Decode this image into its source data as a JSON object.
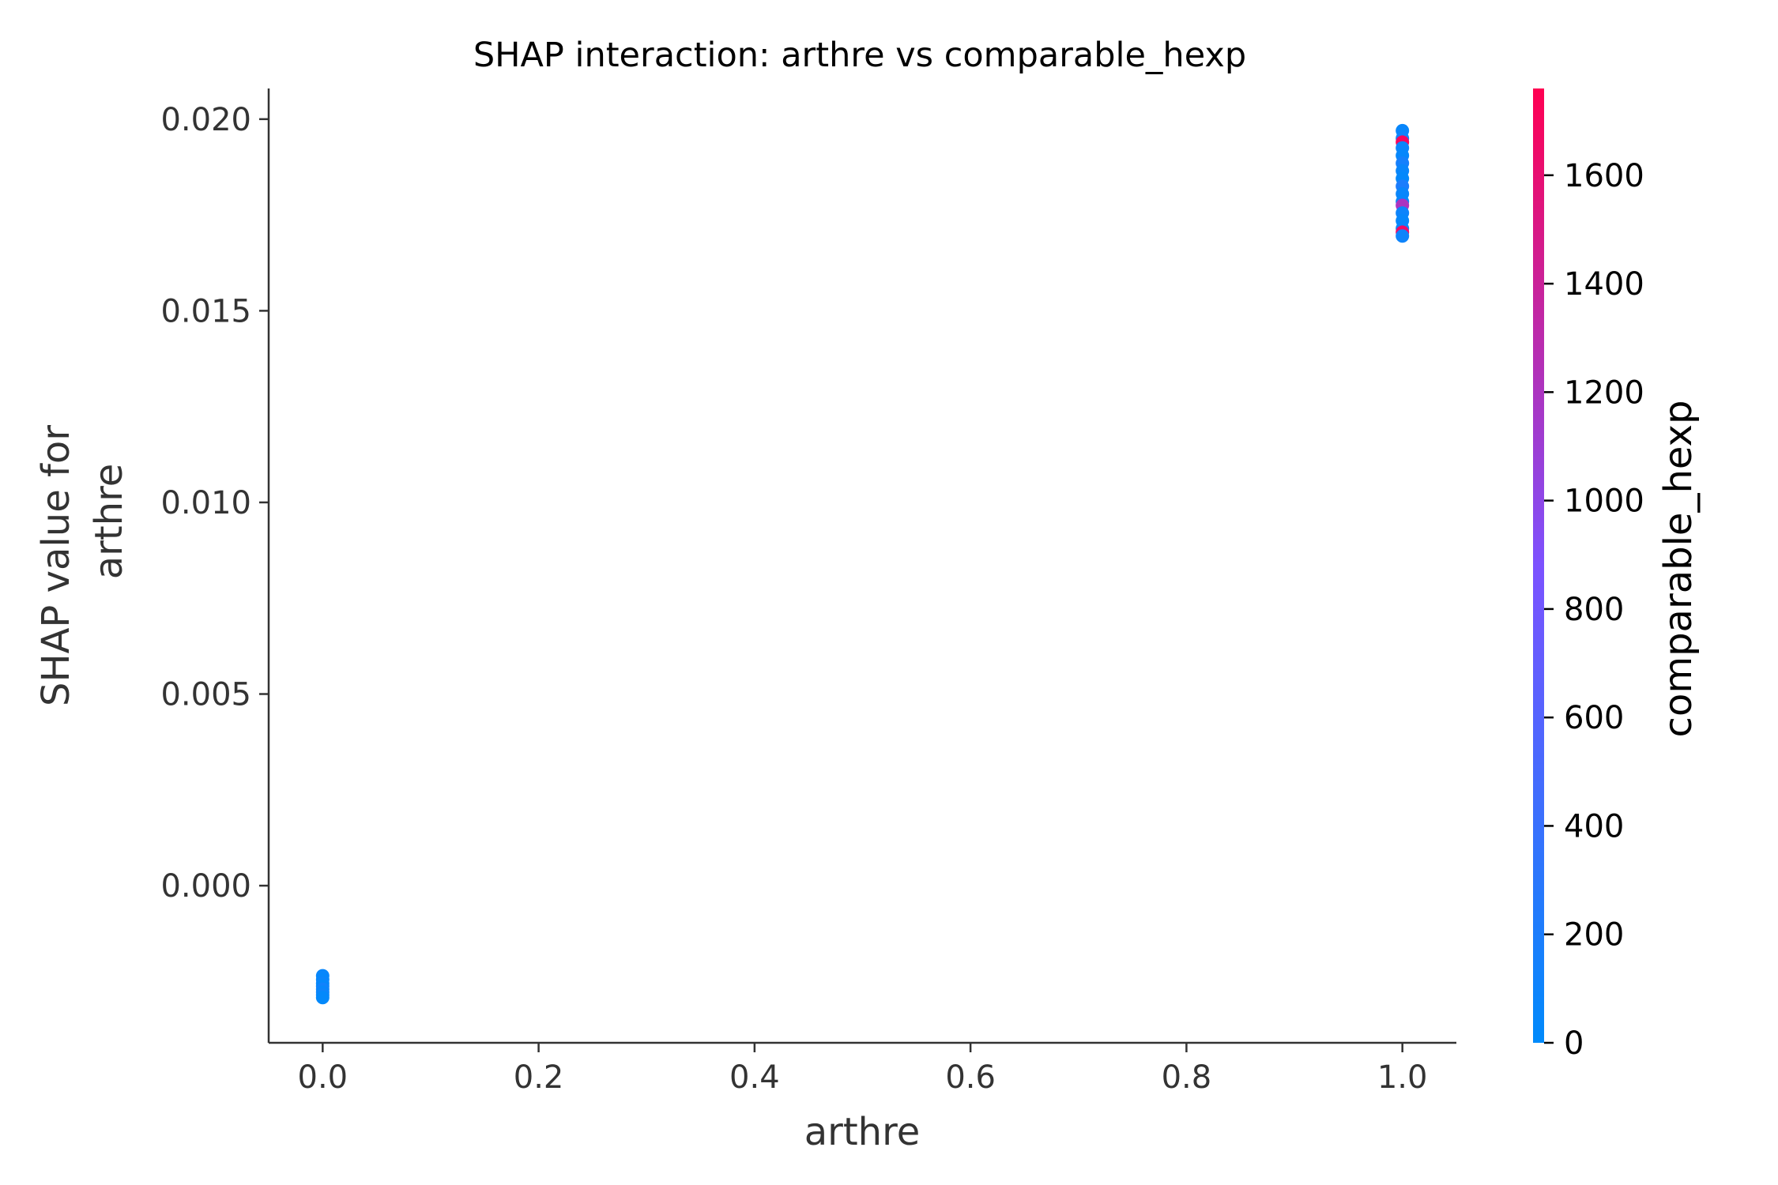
{
  "chart_data": {
    "type": "scatter",
    "title": "SHAP interaction: arthre vs comparable_hexp",
    "xlabel": "arthre",
    "ylabel_lines": [
      "SHAP value for",
      "arthre"
    ],
    "xlim": [
      -0.05,
      1.05
    ],
    "ylim": [
      -0.0041,
      0.0208
    ],
    "x_ticks": [
      0.0,
      0.2,
      0.4,
      0.6,
      0.8,
      1.0
    ],
    "x_tick_labels": [
      "0.0",
      "0.2",
      "0.4",
      "0.6",
      "0.8",
      "1.0"
    ],
    "y_ticks": [
      0.0,
      0.005,
      0.01,
      0.015,
      0.02
    ],
    "y_tick_labels": [
      "0.000",
      "0.005",
      "0.010",
      "0.015",
      "0.020"
    ],
    "colorbar": {
      "label": "comparable_hexp",
      "range": [
        0,
        1760
      ],
      "ticks": [
        0,
        200,
        400,
        600,
        800,
        1000,
        1200,
        1400,
        1600
      ],
      "tick_labels": [
        "0",
        "200",
        "400",
        "600",
        "800",
        "1000",
        "1200",
        "1400",
        "1600"
      ],
      "color_low": "#008afb",
      "color_mid": "#7c52ff",
      "color_high": "#ff0052"
    },
    "points": [
      {
        "x": 0.0,
        "y": -0.00235,
        "c": 60
      },
      {
        "x": 0.0,
        "y": -0.00245,
        "c": 40
      },
      {
        "x": 0.0,
        "y": -0.00255,
        "c": 80
      },
      {
        "x": 0.0,
        "y": -0.00262,
        "c": 30
      },
      {
        "x": 0.0,
        "y": -0.0027,
        "c": 120
      },
      {
        "x": 0.0,
        "y": -0.00278,
        "c": 50
      },
      {
        "x": 0.0,
        "y": -0.00285,
        "c": 90
      },
      {
        "x": 0.0,
        "y": -0.00292,
        "c": 20
      },
      {
        "x": 1.0,
        "y": 0.0197,
        "c": 60
      },
      {
        "x": 1.0,
        "y": 0.0195,
        "c": 100
      },
      {
        "x": 1.0,
        "y": 0.0194,
        "c": 1700
      },
      {
        "x": 1.0,
        "y": 0.01925,
        "c": 80
      },
      {
        "x": 1.0,
        "y": 0.01905,
        "c": 40
      },
      {
        "x": 1.0,
        "y": 0.01885,
        "c": 150
      },
      {
        "x": 1.0,
        "y": 0.01865,
        "c": 60
      },
      {
        "x": 1.0,
        "y": 0.01845,
        "c": 30
      },
      {
        "x": 1.0,
        "y": 0.01825,
        "c": 200
      },
      {
        "x": 1.0,
        "y": 0.01805,
        "c": 70
      },
      {
        "x": 1.0,
        "y": 0.01785,
        "c": 50
      },
      {
        "x": 1.0,
        "y": 0.01775,
        "c": 1200
      },
      {
        "x": 1.0,
        "y": 0.01755,
        "c": 90
      },
      {
        "x": 1.0,
        "y": 0.01735,
        "c": 40
      },
      {
        "x": 1.0,
        "y": 0.01715,
        "c": 60
      },
      {
        "x": 1.0,
        "y": 0.01705,
        "c": 1650
      },
      {
        "x": 1.0,
        "y": 0.01695,
        "c": 100
      }
    ]
  }
}
